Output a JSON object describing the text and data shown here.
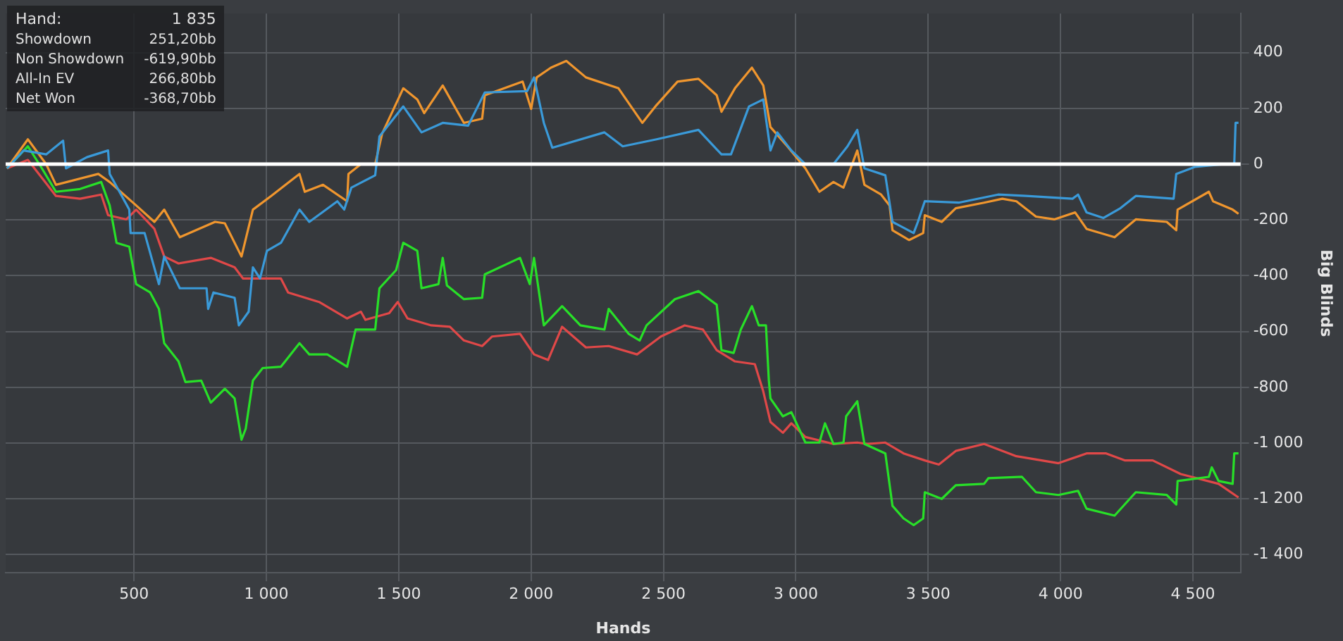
{
  "chart_data": {
    "type": "line",
    "xlabel": "Hands",
    "ylabel": "Big Blinds",
    "annotations": [
      "Hand:",
      "1 835",
      "Showdown",
      "251,20bb",
      "Non Showdown",
      "-619,90bb",
      "All-In EV",
      "266,80bb",
      "Net Won",
      "-368,70bb"
    ],
    "xlim": [
      15,
      4680
    ],
    "ylim": [
      -1465,
      540
    ],
    "xticks": [
      {
        "value": 500,
        "label": "500"
      },
      {
        "value": 1000,
        "label": "1 000"
      },
      {
        "value": 1500,
        "label": "1 500"
      },
      {
        "value": 2000,
        "label": "2 000"
      },
      {
        "value": 2500,
        "label": "2 500"
      },
      {
        "value": 3000,
        "label": "3 000"
      },
      {
        "value": 3500,
        "label": "3 500"
      },
      {
        "value": 4000,
        "label": "4 000"
      },
      {
        "value": 4500,
        "label": "4 500"
      }
    ],
    "yticks": [
      {
        "value": -1400,
        "label": "-1 400"
      },
      {
        "value": -1200,
        "label": "-1 200"
      },
      {
        "value": -1000,
        "label": "-1 000"
      },
      -800,
      -600,
      -400,
      -200,
      0,
      200,
      400
    ],
    "grid": true,
    "marker": "none",
    "line_style": "solid",
    "ref_lines": [
      {
        "axis": "y",
        "value": 0,
        "label": null,
        "color": "#ffffff"
      }
    ],
    "series": [
      {
        "color": "#3a9ad9",
        "x": [
          20,
          83,
          168,
          232,
          243,
          322,
          402,
          408,
          482,
          487,
          540,
          594,
          614,
          673,
          774,
          780,
          800,
          880,
          896,
          933,
          949,
          976,
          1002,
          1055,
          1125,
          1162,
          1268,
          1294,
          1321,
          1411,
          1427,
          1517,
          1586,
          1666,
          1762,
          1825,
          1985,
          2011,
          2048,
          2080,
          2277,
          2346,
          2474,
          2632,
          2719,
          2755,
          2823,
          2877,
          2904,
          2930,
          2983,
          3036,
          3142,
          3195,
          3232,
          3259,
          3338,
          3365,
          3445,
          3461,
          3487,
          3615,
          3764,
          3870,
          4045,
          4066,
          4098,
          4162,
          4226,
          4284,
          4427,
          4437,
          4507,
          4613,
          4656,
          4661,
          4672
        ],
        "values": [
          -15,
          49,
          35,
          84,
          -15,
          25,
          49,
          -35,
          -163,
          -247,
          -247,
          -430,
          -331,
          -445,
          -445,
          -519,
          -460,
          -479,
          -578,
          -529,
          -370,
          -410,
          -311,
          -282,
          -163,
          -207,
          -133,
          -163,
          -84,
          -40,
          99,
          207,
          114,
          148,
          138,
          257,
          262,
          311,
          148,
          59,
          114,
          64,
          89,
          123,
          35,
          35,
          207,
          232,
          49,
          114,
          49,
          0,
          0,
          64,
          123,
          -15,
          -40,
          -207,
          -247,
          -207,
          -133,
          -138,
          -109,
          -114,
          -124,
          -109,
          -173,
          -193,
          -158,
          -114,
          -124,
          -35,
          -10,
          0,
          0,
          148,
          148
        ]
      },
      {
        "color": "#f0962e",
        "x": [
          20,
          99,
          168,
          205,
          365,
          408,
          508,
          577,
          614,
          673,
          806,
          843,
          906,
          949,
          1018,
          1125,
          1145,
          1214,
          1305,
          1310,
          1357,
          1411,
          1437,
          1517,
          1570,
          1596,
          1666,
          1746,
          1815,
          1825,
          1968,
          2000,
          2021,
          2075,
          2133,
          2207,
          2330,
          2420,
          2474,
          2553,
          2632,
          2701,
          2719,
          2770,
          2834,
          2877,
          2904,
          2968,
          3036,
          3089,
          3142,
          3180,
          3232,
          3259,
          3322,
          3354,
          3365,
          3428,
          3481,
          3487,
          3551,
          3604,
          3711,
          3780,
          3833,
          3907,
          3976,
          4055,
          4098,
          4204,
          4284,
          4401,
          4437,
          4442,
          4560,
          4576,
          4650,
          4672
        ],
        "values": [
          -15,
          89,
          0,
          -74,
          -35,
          -64,
          -148,
          -207,
          -163,
          -262,
          -207,
          -212,
          -331,
          -163,
          -114,
          -35,
          -99,
          -74,
          -133,
          -35,
          0,
          0,
          109,
          272,
          232,
          183,
          282,
          148,
          163,
          247,
          296,
          198,
          311,
          346,
          370,
          311,
          272,
          148,
          212,
          296,
          306,
          247,
          188,
          272,
          346,
          282,
          133,
          64,
          -15,
          -99,
          -64,
          -84,
          49,
          -74,
          -109,
          -148,
          -237,
          -272,
          -247,
          -183,
          -207,
          -158,
          -138,
          -124,
          -133,
          -188,
          -198,
          -173,
          -232,
          -262,
          -198,
          -207,
          -237,
          -163,
          -99,
          -133,
          -163,
          -178
        ]
      },
      {
        "color": "#28e028",
        "x": [
          20,
          99,
          152,
          205,
          296,
          376,
          408,
          434,
          482,
          508,
          561,
          594,
          614,
          668,
          694,
          754,
          790,
          843,
          880,
          906,
          922,
          949,
          986,
          1055,
          1125,
          1162,
          1230,
          1305,
          1337,
          1411,
          1427,
          1490,
          1517,
          1570,
          1586,
          1650,
          1666,
          1682,
          1746,
          1815,
          1825,
          1958,
          1995,
          2011,
          2048,
          2117,
          2186,
          2277,
          2293,
          2368,
          2410,
          2436,
          2543,
          2632,
          2701,
          2719,
          2765,
          2792,
          2834,
          2860,
          2887,
          2898,
          2904,
          2951,
          2983,
          3036,
          3089,
          3110,
          3142,
          3180,
          3190,
          3232,
          3259,
          3338,
          3365,
          3407,
          3445,
          3481,
          3487,
          3551,
          3604,
          3711,
          3727,
          3854,
          3907,
          3992,
          4066,
          4098,
          4204,
          4284,
          4401,
          4437,
          4442,
          4560,
          4571,
          4597,
          4650,
          4656,
          4672
        ],
        "values": [
          -15,
          64,
          -15,
          -99,
          -89,
          -64,
          -148,
          -282,
          -296,
          -430,
          -460,
          -519,
          -642,
          -707,
          -781,
          -776,
          -855,
          -805,
          -840,
          -988,
          -948,
          -776,
          -731,
          -726,
          -642,
          -682,
          -682,
          -726,
          -593,
          -593,
          -445,
          -380,
          -282,
          -311,
          -445,
          -430,
          -336,
          -435,
          -484,
          -479,
          -395,
          -336,
          -430,
          -336,
          -578,
          -509,
          -578,
          -593,
          -519,
          -608,
          -632,
          -578,
          -484,
          -455,
          -504,
          -667,
          -677,
          -593,
          -509,
          -578,
          -578,
          -776,
          -840,
          -904,
          -889,
          -998,
          -998,
          -929,
          -1003,
          -998,
          -904,
          -850,
          -1003,
          -1037,
          -1225,
          -1270,
          -1294,
          -1270,
          -1176,
          -1200,
          -1151,
          -1146,
          -1126,
          -1121,
          -1176,
          -1186,
          -1171,
          -1235,
          -1260,
          -1176,
          -1186,
          -1220,
          -1136,
          -1121,
          -1087,
          -1136,
          -1146,
          -1037,
          -1037
        ]
      },
      {
        "color": "#e04848",
        "x": [
          20,
          99,
          152,
          205,
          296,
          376,
          402,
          471,
          508,
          577,
          614,
          668,
          790,
          880,
          912,
          1055,
          1082,
          1199,
          1305,
          1357,
          1374,
          1464,
          1496,
          1533,
          1623,
          1693,
          1746,
          1815,
          1852,
          1958,
          2011,
          2064,
          2117,
          2207,
          2293,
          2400,
          2490,
          2580,
          2649,
          2701,
          2770,
          2845,
          2877,
          2904,
          2951,
          2983,
          3036,
          3142,
          3232,
          3270,
          3338,
          3407,
          3487,
          3540,
          3604,
          3711,
          3833,
          3992,
          4098,
          4172,
          4242,
          4348,
          4454,
          4597,
          4672
        ],
        "values": [
          -15,
          15,
          -49,
          -114,
          -124,
          -109,
          -183,
          -198,
          -163,
          -232,
          -331,
          -356,
          -336,
          -370,
          -410,
          -410,
          -460,
          -494,
          -553,
          -529,
          -558,
          -534,
          -494,
          -553,
          -578,
          -583,
          -632,
          -652,
          -618,
          -608,
          -682,
          -702,
          -583,
          -657,
          -652,
          -682,
          -618,
          -578,
          -593,
          -667,
          -707,
          -717,
          -815,
          -924,
          -963,
          -929,
          -978,
          -1003,
          -998,
          -1003,
          -998,
          -1037,
          -1062,
          -1077,
          -1028,
          -1003,
          -1047,
          -1072,
          -1037,
          -1037,
          -1062,
          -1062,
          -1111,
          -1146,
          -1195
        ]
      }
    ]
  }
}
